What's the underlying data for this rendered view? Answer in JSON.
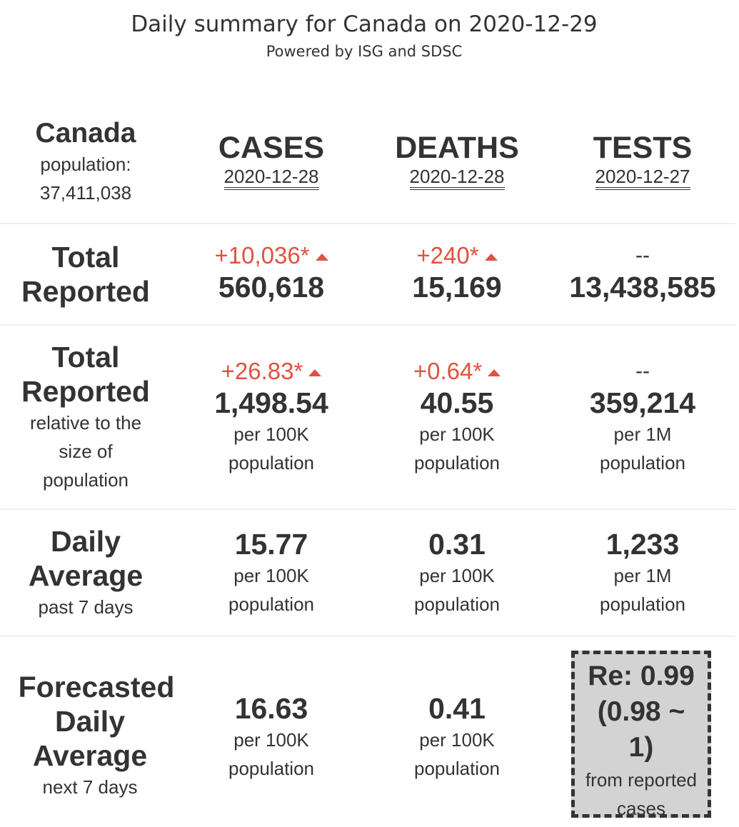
{
  "header": {
    "title": "Daily summary for Canada on 2020-12-29",
    "subtitle": "Powered by ISG and SDSC"
  },
  "region": {
    "name": "Canada",
    "population_label": "population:",
    "population_value": "37,411,038"
  },
  "columns": [
    {
      "title": "CASES",
      "date": "2020-12-28"
    },
    {
      "title": "DEATHS",
      "date": "2020-12-28"
    },
    {
      "title": "TESTS",
      "date": "2020-12-27"
    }
  ],
  "rows": {
    "total_reported": {
      "label_line1": "Total",
      "label_line2": "Reported",
      "cases": {
        "delta": "+10,036*",
        "value": "560,618"
      },
      "deaths": {
        "delta": "+240*",
        "value": "15,169"
      },
      "tests": {
        "delta": "--",
        "value": "13,438,585"
      }
    },
    "relative": {
      "label_line1": "Total",
      "label_line2": "Reported",
      "sub1": "relative to the",
      "sub2": "size of",
      "sub3": "population",
      "cases": {
        "delta": "+26.83*",
        "value": "1,498.54",
        "unit1": "per 100K",
        "unit2": "population"
      },
      "deaths": {
        "delta": "+0.64*",
        "value": "40.55",
        "unit1": "per 100K",
        "unit2": "population"
      },
      "tests": {
        "delta": "--",
        "value": "359,214",
        "unit1": "per 1M",
        "unit2": "population"
      }
    },
    "daily_average": {
      "label_line1": "Daily",
      "label_line2": "Average",
      "sub": "past 7 days",
      "cases": {
        "value": "15.77",
        "unit1": "per 100K",
        "unit2": "population"
      },
      "deaths": {
        "value": "0.31",
        "unit1": "per 100K",
        "unit2": "population"
      },
      "tests": {
        "value": "1,233",
        "unit1": "per 1M",
        "unit2": "population"
      }
    },
    "forecast": {
      "label_line1": "Forecasted",
      "label_line2": "Daily",
      "label_line3": "Average",
      "sub": "next 7 days",
      "cases": {
        "value": "16.63",
        "unit1": "per 100K",
        "unit2": "population"
      },
      "deaths": {
        "value": "0.41",
        "unit1": "per 100K",
        "unit2": "population"
      },
      "re": {
        "line1": "Re: 0.99",
        "line2": "(0.98 ~",
        "line3": "1)",
        "sub1": "from reported",
        "sub2": "cases"
      }
    }
  },
  "colors": {
    "increase": "#e05240",
    "text": "#333333",
    "re_box": "#d3d3d3"
  }
}
